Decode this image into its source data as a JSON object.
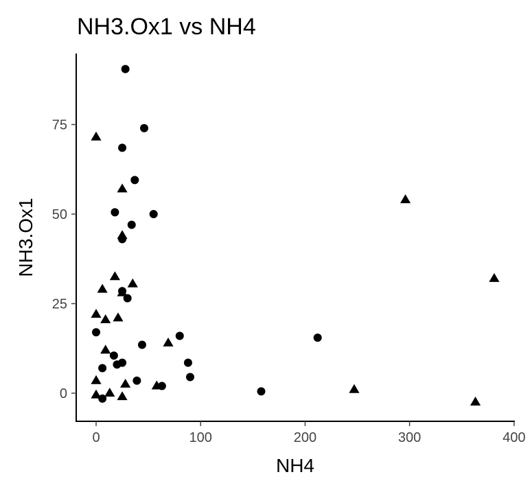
{
  "chart_data": {
    "type": "scatter",
    "title": "NH3.Ox1 vs NH4",
    "xlabel": "NH4",
    "ylabel": "NH3.Ox1",
    "xlim": [
      -20,
      400
    ],
    "ylim": [
      -8,
      93
    ],
    "x_ticks": [
      {
        "value": 0,
        "label": "0"
      },
      {
        "value": 100,
        "label": "100"
      },
      {
        "value": 200,
        "label": "200"
      },
      {
        "value": 300,
        "label": "300"
      },
      {
        "value": 400,
        "label": "400"
      }
    ],
    "y_ticks": [
      {
        "value": 0,
        "label": "0"
      },
      {
        "value": 25,
        "label": "25"
      },
      {
        "value": 50,
        "label": "50"
      },
      {
        "value": 75,
        "label": "75"
      }
    ],
    "grid": false,
    "legend": "none",
    "marker_color": "#000000",
    "series": [
      {
        "marker": "circle",
        "points": [
          {
            "x": 28,
            "y": 90.5
          },
          {
            "x": 46,
            "y": 74
          },
          {
            "x": 25,
            "y": 68.5
          },
          {
            "x": 37,
            "y": 59.5
          },
          {
            "x": 18,
            "y": 50.5
          },
          {
            "x": 55,
            "y": 50
          },
          {
            "x": 34,
            "y": 47
          },
          {
            "x": 25,
            "y": 43
          },
          {
            "x": 25,
            "y": 28.5
          },
          {
            "x": 30,
            "y": 26.5
          },
          {
            "x": 0,
            "y": 17
          },
          {
            "x": 80,
            "y": 16
          },
          {
            "x": 212,
            "y": 15.5
          },
          {
            "x": 44,
            "y": 13.5
          },
          {
            "x": 17,
            "y": 10.5
          },
          {
            "x": 88,
            "y": 8.5
          },
          {
            "x": 25,
            "y": 8.5
          },
          {
            "x": 20,
            "y": 8
          },
          {
            "x": 6,
            "y": 7
          },
          {
            "x": 90,
            "y": 4.5
          },
          {
            "x": 39,
            "y": 3.5
          },
          {
            "x": 63,
            "y": 2
          },
          {
            "x": 158,
            "y": 0.5
          },
          {
            "x": 6,
            "y": -1.5
          }
        ]
      },
      {
        "marker": "triangle",
        "points": [
          {
            "x": 0,
            "y": 71.5
          },
          {
            "x": 25,
            "y": 57
          },
          {
            "x": 296,
            "y": 54
          },
          {
            "x": 25,
            "y": 44
          },
          {
            "x": 18,
            "y": 32.5
          },
          {
            "x": 35,
            "y": 30.5
          },
          {
            "x": 381,
            "y": 32
          },
          {
            "x": 6,
            "y": 29
          },
          {
            "x": 25,
            "y": 28
          },
          {
            "x": 0,
            "y": 22
          },
          {
            "x": 9,
            "y": 20.5
          },
          {
            "x": 21,
            "y": 21
          },
          {
            "x": 69,
            "y": 14
          },
          {
            "x": 9,
            "y": 12
          },
          {
            "x": 0,
            "y": 3.5
          },
          {
            "x": 28,
            "y": 2.5
          },
          {
            "x": 58,
            "y": 2
          },
          {
            "x": 247,
            "y": 1
          },
          {
            "x": 0,
            "y": -0.5
          },
          {
            "x": 13,
            "y": 0
          },
          {
            "x": 25,
            "y": -1
          },
          {
            "x": 363,
            "y": -2.5
          }
        ]
      }
    ]
  }
}
